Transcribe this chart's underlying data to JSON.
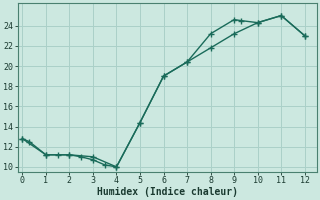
{
  "xlabel": "Humidex (Indice chaleur)",
  "background_color": "#cce8e0",
  "grid_color": "#aad0c8",
  "line_color": "#1a6b5a",
  "x_line1": [
    0,
    0.3,
    1,
    1.5,
    2,
    2.5,
    3,
    3.5,
    4,
    5,
    6,
    7,
    8,
    9,
    9.3,
    10,
    11,
    12
  ],
  "y_line1": [
    12.8,
    12.5,
    11.2,
    11.2,
    11.2,
    11.0,
    10.7,
    10.2,
    10.0,
    14.4,
    19.0,
    20.4,
    23.2,
    24.6,
    24.5,
    24.3,
    25.0,
    23.0
  ],
  "x_line2": [
    0,
    1,
    2,
    3,
    4,
    5,
    6,
    7,
    8,
    9,
    10,
    11,
    12
  ],
  "y_line2": [
    12.8,
    11.2,
    11.2,
    11.0,
    10.0,
    14.4,
    19.0,
    20.4,
    21.8,
    23.2,
    24.3,
    25.0,
    23.0
  ],
  "xlim": [
    -0.2,
    12.5
  ],
  "ylim": [
    9.5,
    26.2
  ],
  "xticks": [
    0,
    1,
    2,
    3,
    4,
    5,
    6,
    7,
    8,
    9,
    10,
    11,
    12
  ],
  "yticks": [
    10,
    12,
    14,
    16,
    18,
    20,
    22,
    24
  ],
  "marker_size": 3,
  "line_width": 1.0,
  "tick_fontsize": 6,
  "xlabel_fontsize": 7
}
